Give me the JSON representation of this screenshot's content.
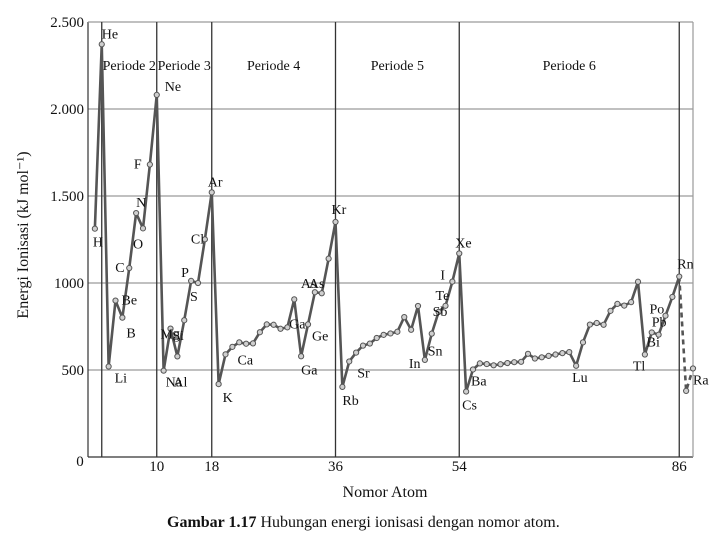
{
  "chart_data": {
    "type": "line",
    "xlabel": "Nomor Atom",
    "ylabel": "Energi Ionisasi (kJ mol⁻¹)",
    "caption_bold": "Gambar 1.17",
    "caption_text": " Hubungan energi ionisasi dengan nomor atom.",
    "xlim": [
      0,
      88
    ],
    "ylim": [
      0,
      2500
    ],
    "x_ticks": [
      {
        "value": 0,
        "label": "0"
      },
      {
        "value": 10,
        "label": "10"
      },
      {
        "value": 18,
        "label": "18"
      },
      {
        "value": 36,
        "label": "36"
      },
      {
        "value": 54,
        "label": "54"
      },
      {
        "value": 86,
        "label": "86"
      }
    ],
    "y_ticks": [
      {
        "value": 500,
        "label": "500"
      },
      {
        "value": 1000,
        "label": "1000"
      },
      {
        "value": 1500,
        "label": "1.500"
      },
      {
        "value": 2000,
        "label": "2.000"
      },
      {
        "value": 2500,
        "label": "2.500"
      }
    ],
    "period_boundaries": [
      2,
      10,
      18,
      36,
      54,
      86
    ],
    "periods": [
      {
        "label": "Periode 2",
        "from": 2,
        "to": 10
      },
      {
        "label": "Periode 3",
        "from": 10,
        "to": 18
      },
      {
        "label": "Periode 4",
        "from": 18,
        "to": 36
      },
      {
        "label": "Periode 5",
        "from": 36,
        "to": 54
      },
      {
        "label": "Periode 6",
        "from": 54,
        "to": 86
      }
    ],
    "series": [
      {
        "x": [
          1,
          2,
          3,
          4,
          5,
          6,
          7,
          8,
          9,
          10,
          11,
          12,
          13,
          14,
          15,
          16,
          17,
          18,
          19,
          20,
          21,
          22,
          23,
          24,
          25,
          26,
          27,
          28,
          29,
          30,
          31,
          32,
          33,
          34,
          35,
          36,
          37,
          38,
          39,
          40,
          41,
          42,
          43,
          44,
          45,
          46,
          47,
          48,
          49,
          50,
          51,
          52,
          53,
          54,
          55,
          56,
          57,
          58,
          59,
          60,
          61,
          62,
          63,
          64,
          65,
          66,
          67,
          68,
          69,
          70,
          71,
          72,
          73,
          74,
          75,
          76,
          77,
          78,
          79,
          80,
          81,
          82,
          83,
          84,
          85,
          86,
          87,
          88
        ],
        "y": [
          1312,
          2372,
          520,
          899,
          801,
          1086,
          1402,
          1314,
          1681,
          2081,
          496,
          738,
          578,
          786,
          1012,
          1000,
          1251,
          1521,
          419,
          590,
          633,
          659,
          651,
          653,
          717,
          762,
          760,
          737,
          745,
          906,
          579,
          762,
          947,
          941,
          1140,
          1351,
          403,
          549,
          600,
          640,
          652,
          684,
          702,
          710,
          720,
          804,
          731,
          868,
          558,
          709,
          834,
          869,
          1008,
          1170,
          376,
          503,
          538,
          534,
          527,
          533,
          540,
          545,
          547,
          593,
          566,
          573,
          581,
          589,
          597,
          603,
          524,
          659,
          761,
          770,
          760,
          840,
          880,
          870,
          890,
          1007,
          589,
          716,
          703,
          812,
          920,
          1037,
          380,
          509
        ],
        "dashed_from": 86
      }
    ],
    "element_labels": [
      {
        "symbol": "H",
        "z": 1
      },
      {
        "symbol": "He",
        "z": 2
      },
      {
        "symbol": "Li",
        "z": 3
      },
      {
        "symbol": "Be",
        "z": 4
      },
      {
        "symbol": "B",
        "z": 5
      },
      {
        "symbol": "C",
        "z": 6
      },
      {
        "symbol": "N",
        "z": 7
      },
      {
        "symbol": "O",
        "z": 8
      },
      {
        "symbol": "F",
        "z": 9
      },
      {
        "symbol": "Ne",
        "z": 10
      },
      {
        "symbol": "Na",
        "z": 11
      },
      {
        "symbol": "Mg",
        "z": 12
      },
      {
        "symbol": "Al",
        "z": 13
      },
      {
        "symbol": "Si",
        "z": 14
      },
      {
        "symbol": "P",
        "z": 15
      },
      {
        "symbol": "S",
        "z": 16
      },
      {
        "symbol": "Cl",
        "z": 17
      },
      {
        "symbol": "Ar",
        "z": 18
      },
      {
        "symbol": "K",
        "z": 19
      },
      {
        "symbol": "Ca",
        "z": 20
      },
      {
        "symbol": "Ga",
        "z": 31
      },
      {
        "symbol": "As",
        "z": 33
      },
      {
        "symbol": "Ge",
        "z": 32
      },
      {
        "symbol": "Ga",
        "z": 31
      },
      {
        "symbol": "As",
        "z": 33
      },
      {
        "symbol": "Kr",
        "z": 36
      },
      {
        "symbol": "Rb",
        "z": 37
      },
      {
        "symbol": "Sr",
        "z": 38
      },
      {
        "symbol": "In",
        "z": 49
      },
      {
        "symbol": "Sb",
        "z": 51
      },
      {
        "symbol": "Sn",
        "z": 50
      },
      {
        "symbol": "Te",
        "z": 52
      },
      {
        "symbol": "I",
        "z": 53
      },
      {
        "symbol": "Xe",
        "z": 54
      },
      {
        "symbol": "Cs",
        "z": 55
      },
      {
        "symbol": "Ba",
        "z": 56
      },
      {
        "symbol": "Lu",
        "z": 71
      },
      {
        "symbol": "Tl",
        "z": 81
      },
      {
        "symbol": "Pb",
        "z": 82
      },
      {
        "symbol": "Bi",
        "z": 83
      },
      {
        "symbol": "Po",
        "z": 84
      },
      {
        "symbol": "Rn",
        "z": 86
      },
      {
        "symbol": "Ra",
        "z": 88
      }
    ]
  }
}
